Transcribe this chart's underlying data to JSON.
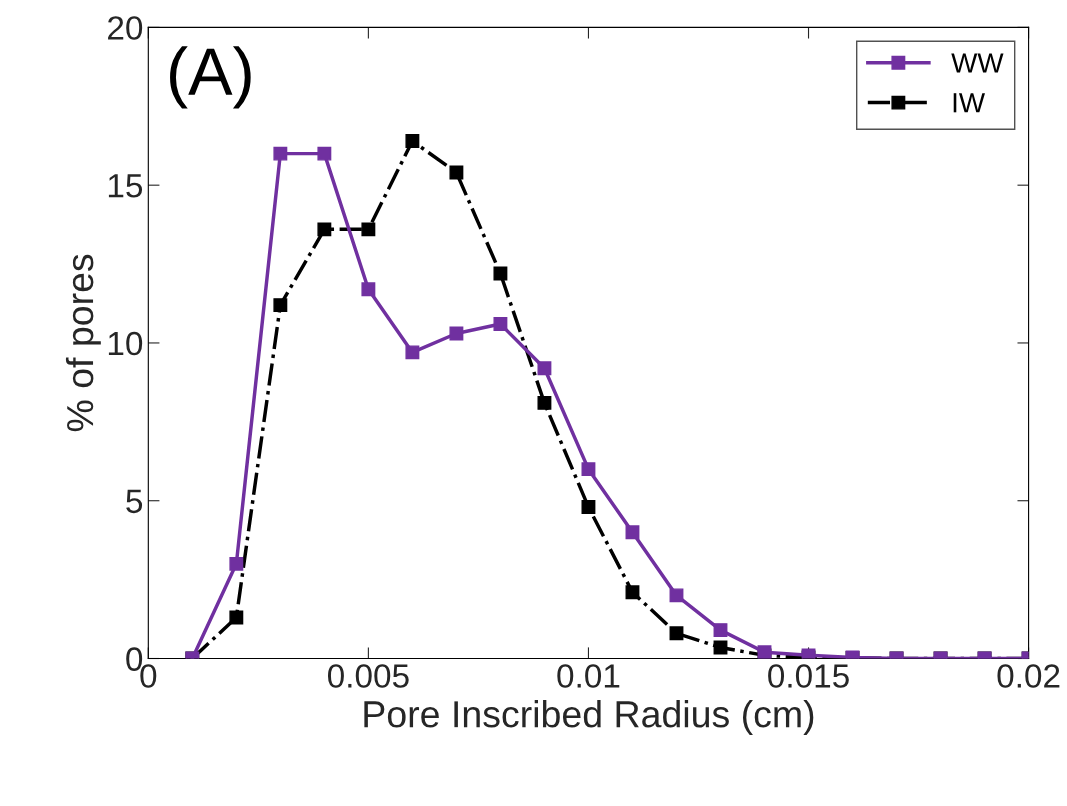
{
  "chart_data": {
    "type": "line",
    "xlabel": "Pore Inscribed Radius (cm)",
    "ylabel": "% of pores",
    "annotations": [
      "(A)"
    ],
    "x": [
      0.001,
      0.002,
      0.003,
      0.004,
      0.005,
      0.006,
      0.007,
      0.008,
      0.009,
      0.01,
      0.011,
      0.012,
      0.013,
      0.014,
      0.015,
      0.016,
      0.017,
      0.018,
      0.019,
      0.02
    ],
    "series": [
      {
        "name": "WW",
        "color": "#7030a0",
        "line_style": "solid",
        "values": [
          0,
          3.0,
          16.0,
          16.0,
          11.7,
          9.7,
          10.3,
          10.6,
          9.2,
          6.0,
          4.0,
          2.0,
          0.9,
          0.2,
          0.1,
          0.03,
          0,
          0,
          0,
          0
        ]
      },
      {
        "name": "IW",
        "color": "#000000",
        "line_style": "dashdot",
        "values": [
          0,
          1.3,
          11.2,
          13.6,
          13.6,
          16.4,
          15.4,
          12.2,
          8.1,
          4.8,
          2.1,
          0.8,
          0.35,
          0.1,
          0.03,
          0.02,
          0,
          0,
          0,
          0
        ]
      }
    ],
    "marker": "square",
    "xlim": [
      0,
      0.02
    ],
    "xticks": [
      0,
      0.005,
      0.01,
      0.015,
      0.02
    ],
    "ylim": [
      0,
      20
    ],
    "yticks": [
      0,
      5,
      10,
      15,
      20
    ],
    "grid": false,
    "legend": "top right"
  }
}
